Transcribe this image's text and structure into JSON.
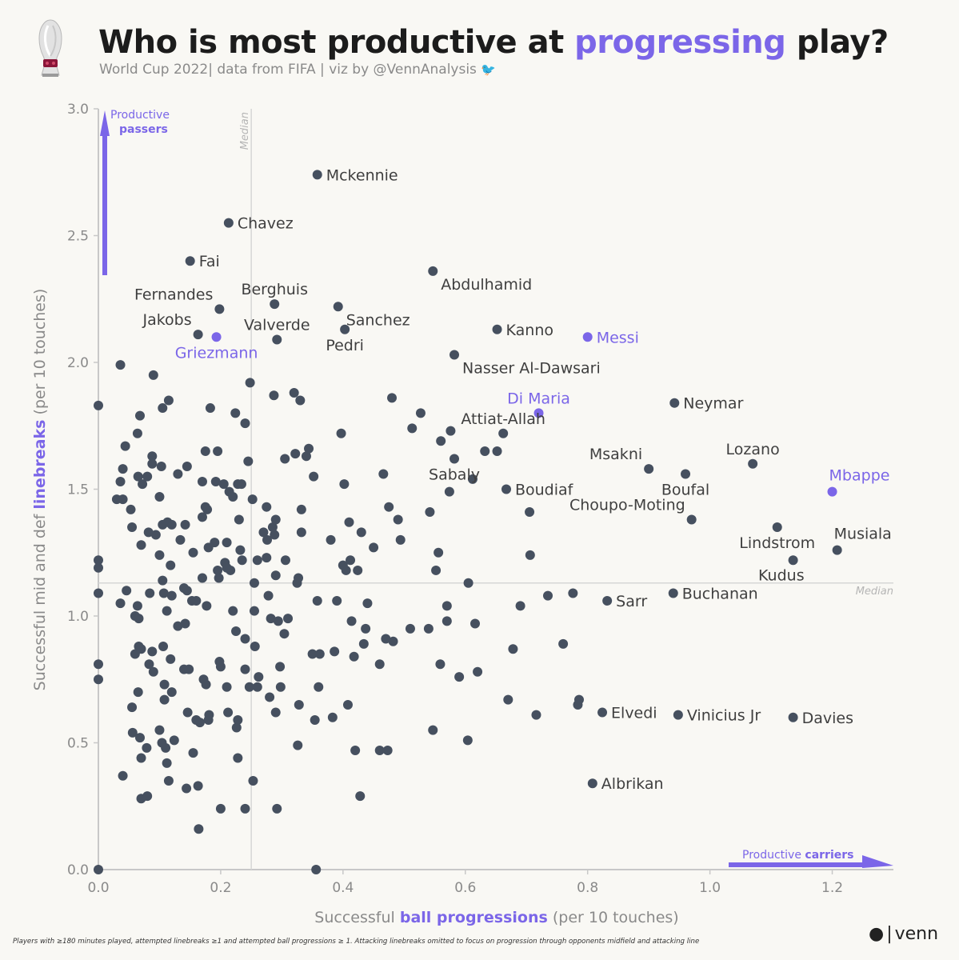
{
  "header": {
    "title_pre": "Who is most productive at ",
    "title_highlight": "progressing",
    "title_post": " play?",
    "subtitle": "World Cup 2022| data from FIFA | viz by @VennAnalysis",
    "twitter_icon": "twitter-bird-icon",
    "logo_icon": "world-cup-trophy-icon"
  },
  "axes": {
    "ylabel_pre": "Successful mid and def ",
    "ylabel_highlight": "linebreaks",
    "ylabel_post": " (per 10 touches)",
    "xlabel_pre": "Successful ",
    "xlabel_highlight": "ball progressions",
    "xlabel_post": " (per 10 touches)"
  },
  "annotations": {
    "passers_line1": "Productive",
    "passers_line2": "passers",
    "carriers_pre": "Productive ",
    "carriers_bold": "carriers",
    "median_label": "Median"
  },
  "footer": {
    "note": "Players with ≥180 minutes played, attempted linebreaks ≥1 and attempted ball progressions ≥ 1. Attacking linebreaks omitted to focus on progression through opponents midfield and attacking line",
    "brand": "venn"
  },
  "colors": {
    "background": "#f9f8f4",
    "point": "#46505f",
    "highlight": "#7b66e8",
    "axis": "#c8c8c8",
    "label": "#3f3f3f"
  },
  "chart_data": {
    "type": "scatter",
    "xlim": [
      0,
      1.3
    ],
    "ylim": [
      0,
      3.0
    ],
    "x_ticks": [
      0.0,
      0.2,
      0.4,
      0.6,
      0.8,
      1.0,
      1.2
    ],
    "y_ticks": [
      0.0,
      0.5,
      1.0,
      1.5,
      2.0,
      2.5,
      3.0
    ],
    "x_tick_labels": [
      "0.0",
      "0.2",
      "0.4",
      "0.6",
      "0.8",
      "1.0",
      "1.2"
    ],
    "y_tick_labels": [
      "0.0",
      "0.5",
      "1.0",
      "1.5",
      "2.0",
      "2.5",
      "3.0"
    ],
    "median_x": 0.25,
    "median_y": 1.13,
    "grid": false,
    "labeled_points": [
      {
        "name": "Mckennie",
        "x": 0.358,
        "y": 2.74,
        "highlight": false,
        "pos": "right"
      },
      {
        "name": "Chavez",
        "x": 0.213,
        "y": 2.55,
        "highlight": false,
        "pos": "right"
      },
      {
        "name": "Fai",
        "x": 0.15,
        "y": 2.4,
        "highlight": false,
        "pos": "right"
      },
      {
        "name": "Abdulhamid",
        "x": 0.547,
        "y": 2.36,
        "highlight": false,
        "pos": "below-right"
      },
      {
        "name": "Fernandes",
        "x": 0.198,
        "y": 2.21,
        "highlight": false,
        "pos": "above-left"
      },
      {
        "name": "Berghuis",
        "x": 0.288,
        "y": 2.23,
        "highlight": false,
        "pos": "above"
      },
      {
        "name": "Sanchez",
        "x": 0.392,
        "y": 2.22,
        "highlight": false,
        "pos": "below-right"
      },
      {
        "name": "Jakobs",
        "x": 0.163,
        "y": 2.11,
        "highlight": false,
        "pos": "above-left"
      },
      {
        "name": "Valverde",
        "x": 0.292,
        "y": 2.09,
        "highlight": false,
        "pos": "above"
      },
      {
        "name": "Pedri",
        "x": 0.403,
        "y": 2.13,
        "highlight": false,
        "pos": "below"
      },
      {
        "name": "Kanno",
        "x": 0.652,
        "y": 2.13,
        "highlight": false,
        "pos": "right"
      },
      {
        "name": "Messi",
        "x": 0.8,
        "y": 2.1,
        "highlight": true,
        "pos": "right"
      },
      {
        "name": "Griezmann",
        "x": 0.193,
        "y": 2.1,
        "highlight": true,
        "pos": "below"
      },
      {
        "name": "Nasser Al-Dawsari",
        "x": 0.582,
        "y": 2.03,
        "highlight": false,
        "pos": "below-right"
      },
      {
        "name": "Neymar",
        "x": 0.942,
        "y": 1.84,
        "highlight": false,
        "pos": "right"
      },
      {
        "name": "Di Maria",
        "x": 0.72,
        "y": 1.8,
        "highlight": true,
        "pos": "above"
      },
      {
        "name": "Attiat-Allah",
        "x": 0.662,
        "y": 1.72,
        "highlight": false,
        "pos": "above"
      },
      {
        "name": "Msakni",
        "x": 0.9,
        "y": 1.58,
        "highlight": false,
        "pos": "above-left"
      },
      {
        "name": "Lozano",
        "x": 1.07,
        "y": 1.6,
        "highlight": false,
        "pos": "above"
      },
      {
        "name": "Sabaly",
        "x": 0.582,
        "y": 1.62,
        "highlight": false,
        "pos": "below"
      },
      {
        "name": "Boufal",
        "x": 0.96,
        "y": 1.56,
        "highlight": false,
        "pos": "below"
      },
      {
        "name": "Mbappe",
        "x": 1.2,
        "y": 1.49,
        "highlight": true,
        "pos": "above-right"
      },
      {
        "name": "Boudiaf",
        "x": 0.667,
        "y": 1.5,
        "highlight": false,
        "pos": "right"
      },
      {
        "name": "Choupo-Moting",
        "x": 0.97,
        "y": 1.38,
        "highlight": false,
        "pos": "above-left"
      },
      {
        "name": "Lindstrom",
        "x": 1.11,
        "y": 1.35,
        "highlight": false,
        "pos": "below"
      },
      {
        "name": "Musiala",
        "x": 1.208,
        "y": 1.26,
        "highlight": false,
        "pos": "above-right"
      },
      {
        "name": "Kudus",
        "x": 1.136,
        "y": 1.22,
        "highlight": false,
        "pos": "below-left"
      },
      {
        "name": "Sarr",
        "x": 0.832,
        "y": 1.06,
        "highlight": false,
        "pos": "right"
      },
      {
        "name": "Buchanan",
        "x": 0.94,
        "y": 1.09,
        "highlight": false,
        "pos": "right"
      },
      {
        "name": "Elvedi",
        "x": 0.824,
        "y": 0.62,
        "highlight": false,
        "pos": "right"
      },
      {
        "name": "Vinicius Jr",
        "x": 0.948,
        "y": 0.61,
        "highlight": false,
        "pos": "right"
      },
      {
        "name": "Davies",
        "x": 1.136,
        "y": 0.6,
        "highlight": false,
        "pos": "right"
      },
      {
        "name": "Albrikan",
        "x": 0.808,
        "y": 0.34,
        "highlight": false,
        "pos": "right"
      }
    ],
    "points": [
      [
        0.0,
        1.83
      ],
      [
        0.0,
        1.22
      ],
      [
        0.0,
        1.19
      ],
      [
        0.0,
        1.09
      ],
      [
        0.0,
        0.81
      ],
      [
        0.0,
        0.75
      ],
      [
        0.0,
        0.0
      ],
      [
        0.036,
        1.99
      ],
      [
        0.03,
        1.46
      ],
      [
        0.036,
        1.53
      ],
      [
        0.04,
        1.58
      ],
      [
        0.044,
        1.67
      ],
      [
        0.04,
        1.46
      ],
      [
        0.046,
        1.1
      ],
      [
        0.036,
        1.05
      ],
      [
        0.04,
        0.37
      ],
      [
        0.053,
        1.42
      ],
      [
        0.055,
        1.35
      ],
      [
        0.06,
        1.0
      ],
      [
        0.06,
        0.85
      ],
      [
        0.055,
        0.64
      ],
      [
        0.056,
        0.54
      ],
      [
        0.064,
        1.72
      ],
      [
        0.068,
        1.79
      ],
      [
        0.065,
        1.55
      ],
      [
        0.072,
        1.52
      ],
      [
        0.07,
        1.28
      ],
      [
        0.064,
        1.04
      ],
      [
        0.066,
        0.99
      ],
      [
        0.066,
        0.88
      ],
      [
        0.07,
        0.87
      ],
      [
        0.065,
        0.7
      ],
      [
        0.068,
        0.52
      ],
      [
        0.07,
        0.44
      ],
      [
        0.07,
        0.28
      ],
      [
        0.08,
        1.55
      ],
      [
        0.082,
        1.33
      ],
      [
        0.084,
        1.09
      ],
      [
        0.083,
        0.81
      ],
      [
        0.079,
        0.48
      ],
      [
        0.08,
        0.29
      ],
      [
        0.09,
        1.95
      ],
      [
        0.088,
        1.63
      ],
      [
        0.088,
        1.6
      ],
      [
        0.094,
        1.32
      ],
      [
        0.088,
        0.86
      ],
      [
        0.09,
        0.78
      ],
      [
        0.1,
        1.47
      ],
      [
        0.1,
        1.24
      ],
      [
        0.1,
        0.55
      ],
      [
        0.104,
        0.5
      ],
      [
        0.108,
        0.67
      ],
      [
        0.11,
        0.48
      ],
      [
        0.105,
        1.82
      ],
      [
        0.103,
        1.59
      ],
      [
        0.105,
        1.36
      ],
      [
        0.105,
        1.14
      ],
      [
        0.107,
        1.09
      ],
      [
        0.108,
        0.73
      ],
      [
        0.106,
        0.88
      ],
      [
        0.112,
        0.42
      ],
      [
        0.112,
        1.02
      ],
      [
        0.113,
        1.37
      ],
      [
        0.115,
        1.85
      ],
      [
        0.118,
        1.2
      ],
      [
        0.12,
        1.36
      ],
      [
        0.12,
        1.08
      ],
      [
        0.118,
        0.83
      ],
      [
        0.12,
        0.7
      ],
      [
        0.115,
        0.35
      ],
      [
        0.124,
        0.51
      ],
      [
        0.13,
        1.56
      ],
      [
        0.13,
        0.96
      ],
      [
        0.134,
        1.3
      ],
      [
        0.14,
        1.11
      ],
      [
        0.14,
        0.79
      ],
      [
        0.142,
        0.97
      ],
      [
        0.145,
        1.59
      ],
      [
        0.142,
        1.36
      ],
      [
        0.145,
        1.1
      ],
      [
        0.146,
        0.62
      ],
      [
        0.148,
        0.79
      ],
      [
        0.144,
        0.32
      ],
      [
        0.153,
        1.06
      ],
      [
        0.155,
        1.25
      ],
      [
        0.155,
        0.46
      ],
      [
        0.16,
        1.06
      ],
      [
        0.16,
        0.59
      ],
      [
        0.163,
        0.33
      ],
      [
        0.164,
        0.16
      ],
      [
        0.166,
        0.58
      ],
      [
        0.17,
        1.53
      ],
      [
        0.17,
        1.39
      ],
      [
        0.17,
        1.15
      ],
      [
        0.172,
        0.75
      ],
      [
        0.175,
        1.65
      ],
      [
        0.175,
        1.43
      ],
      [
        0.177,
        1.04
      ],
      [
        0.176,
        0.73
      ],
      [
        0.18,
        0.59
      ],
      [
        0.183,
        1.82
      ],
      [
        0.18,
        1.27
      ],
      [
        0.178,
        1.42
      ],
      [
        0.181,
        0.61
      ],
      [
        0.19,
        1.29
      ],
      [
        0.192,
        1.53
      ],
      [
        0.195,
        1.65
      ],
      [
        0.195,
        1.18
      ],
      [
        0.197,
        1.15
      ],
      [
        0.2,
        0.8
      ],
      [
        0.198,
        0.82
      ],
      [
        0.2,
        0.24
      ],
      [
        0.205,
        1.52
      ],
      [
        0.207,
        1.21
      ],
      [
        0.21,
        1.29
      ],
      [
        0.21,
        1.19
      ],
      [
        0.21,
        0.72
      ],
      [
        0.212,
        0.62
      ],
      [
        0.214,
        1.49
      ],
      [
        0.216,
        1.18
      ],
      [
        0.22,
        1.47
      ],
      [
        0.22,
        1.02
      ],
      [
        0.224,
        1.8
      ],
      [
        0.225,
        0.94
      ],
      [
        0.226,
        0.56
      ],
      [
        0.228,
        1.52
      ],
      [
        0.228,
        0.59
      ],
      [
        0.23,
        1.38
      ],
      [
        0.232,
        1.26
      ],
      [
        0.234,
        1.52
      ],
      [
        0.228,
        0.44
      ],
      [
        0.235,
        1.22
      ],
      [
        0.24,
        1.76
      ],
      [
        0.24,
        0.91
      ],
      [
        0.24,
        0.79
      ],
      [
        0.24,
        0.24
      ],
      [
        0.245,
        1.61
      ],
      [
        0.247,
        0.72
      ],
      [
        0.248,
        1.92
      ],
      [
        0.252,
        1.46
      ],
      [
        0.253,
        0.35
      ],
      [
        0.255,
        1.13
      ],
      [
        0.255,
        1.02
      ],
      [
        0.256,
        0.88
      ],
      [
        0.26,
        1.22
      ],
      [
        0.26,
        0.72
      ],
      [
        0.262,
        0.76
      ],
      [
        0.27,
        1.33
      ],
      [
        0.275,
        1.23
      ],
      [
        0.275,
        1.43
      ],
      [
        0.276,
        1.3
      ],
      [
        0.278,
        1.08
      ],
      [
        0.28,
        0.68
      ],
      [
        0.282,
        0.99
      ],
      [
        0.285,
        1.35
      ],
      [
        0.287,
        1.87
      ],
      [
        0.29,
        1.38
      ],
      [
        0.288,
        1.32
      ],
      [
        0.29,
        1.16
      ],
      [
        0.29,
        0.62
      ],
      [
        0.292,
        0.24
      ],
      [
        0.294,
        0.98
      ],
      [
        0.297,
        0.8
      ],
      [
        0.298,
        0.72
      ],
      [
        0.305,
        1.62
      ],
      [
        0.306,
        1.22
      ],
      [
        0.304,
        0.93
      ],
      [
        0.31,
        0.99
      ],
      [
        0.32,
        1.88
      ],
      [
        0.322,
        1.64
      ],
      [
        0.325,
        1.13
      ],
      [
        0.327,
        1.15
      ],
      [
        0.328,
        0.65
      ],
      [
        0.326,
        0.49
      ],
      [
        0.33,
        1.85
      ],
      [
        0.332,
        1.42
      ],
      [
        0.332,
        1.33
      ],
      [
        0.34,
        1.63
      ],
      [
        0.344,
        1.66
      ],
      [
        0.35,
        0.85
      ],
      [
        0.352,
        1.55
      ],
      [
        0.354,
        0.59
      ],
      [
        0.356,
        0.0
      ],
      [
        0.358,
        1.06
      ],
      [
        0.36,
        0.72
      ],
      [
        0.362,
        0.85
      ],
      [
        0.38,
        1.3
      ],
      [
        0.383,
        0.6
      ],
      [
        0.386,
        0.86
      ],
      [
        0.39,
        1.06
      ],
      [
        0.397,
        1.72
      ],
      [
        0.4,
        1.2
      ],
      [
        0.402,
        1.52
      ],
      [
        0.405,
        1.18
      ],
      [
        0.408,
        0.65
      ],
      [
        0.41,
        1.37
      ],
      [
        0.412,
        1.22
      ],
      [
        0.414,
        0.98
      ],
      [
        0.418,
        0.84
      ],
      [
        0.42,
        0.47
      ],
      [
        0.424,
        1.18
      ],
      [
        0.428,
        0.29
      ],
      [
        0.43,
        1.33
      ],
      [
        0.434,
        0.89
      ],
      [
        0.437,
        0.95
      ],
      [
        0.44,
        1.05
      ],
      [
        0.45,
        1.27
      ],
      [
        0.46,
        0.81
      ],
      [
        0.46,
        0.47
      ],
      [
        0.466,
        1.56
      ],
      [
        0.47,
        0.91
      ],
      [
        0.473,
        0.47
      ],
      [
        0.475,
        1.43
      ],
      [
        0.48,
        1.86
      ],
      [
        0.482,
        0.9
      ],
      [
        0.49,
        1.38
      ],
      [
        0.494,
        1.3
      ],
      [
        0.51,
        0.95
      ],
      [
        0.513,
        1.74
      ],
      [
        0.527,
        1.8
      ],
      [
        0.54,
        0.95
      ],
      [
        0.542,
        1.41
      ],
      [
        0.547,
        0.55
      ],
      [
        0.552,
        1.18
      ],
      [
        0.556,
        1.25
      ],
      [
        0.559,
        0.81
      ],
      [
        0.56,
        1.69
      ],
      [
        0.57,
        1.04
      ],
      [
        0.57,
        0.98
      ],
      [
        0.574,
        1.49
      ],
      [
        0.576,
        1.73
      ],
      [
        0.59,
        0.76
      ],
      [
        0.604,
        0.51
      ],
      [
        0.605,
        1.13
      ],
      [
        0.612,
        1.54
      ],
      [
        0.616,
        0.97
      ],
      [
        0.62,
        0.78
      ],
      [
        0.632,
        1.65
      ],
      [
        0.652,
        1.65
      ],
      [
        0.67,
        0.67
      ],
      [
        0.678,
        0.87
      ],
      [
        0.69,
        1.04
      ],
      [
        0.705,
        1.41
      ],
      [
        0.706,
        1.24
      ],
      [
        0.716,
        0.61
      ],
      [
        0.735,
        1.08
      ],
      [
        0.76,
        0.89
      ],
      [
        0.776,
        1.09
      ],
      [
        0.784,
        0.65
      ],
      [
        0.786,
        0.67
      ]
    ]
  }
}
